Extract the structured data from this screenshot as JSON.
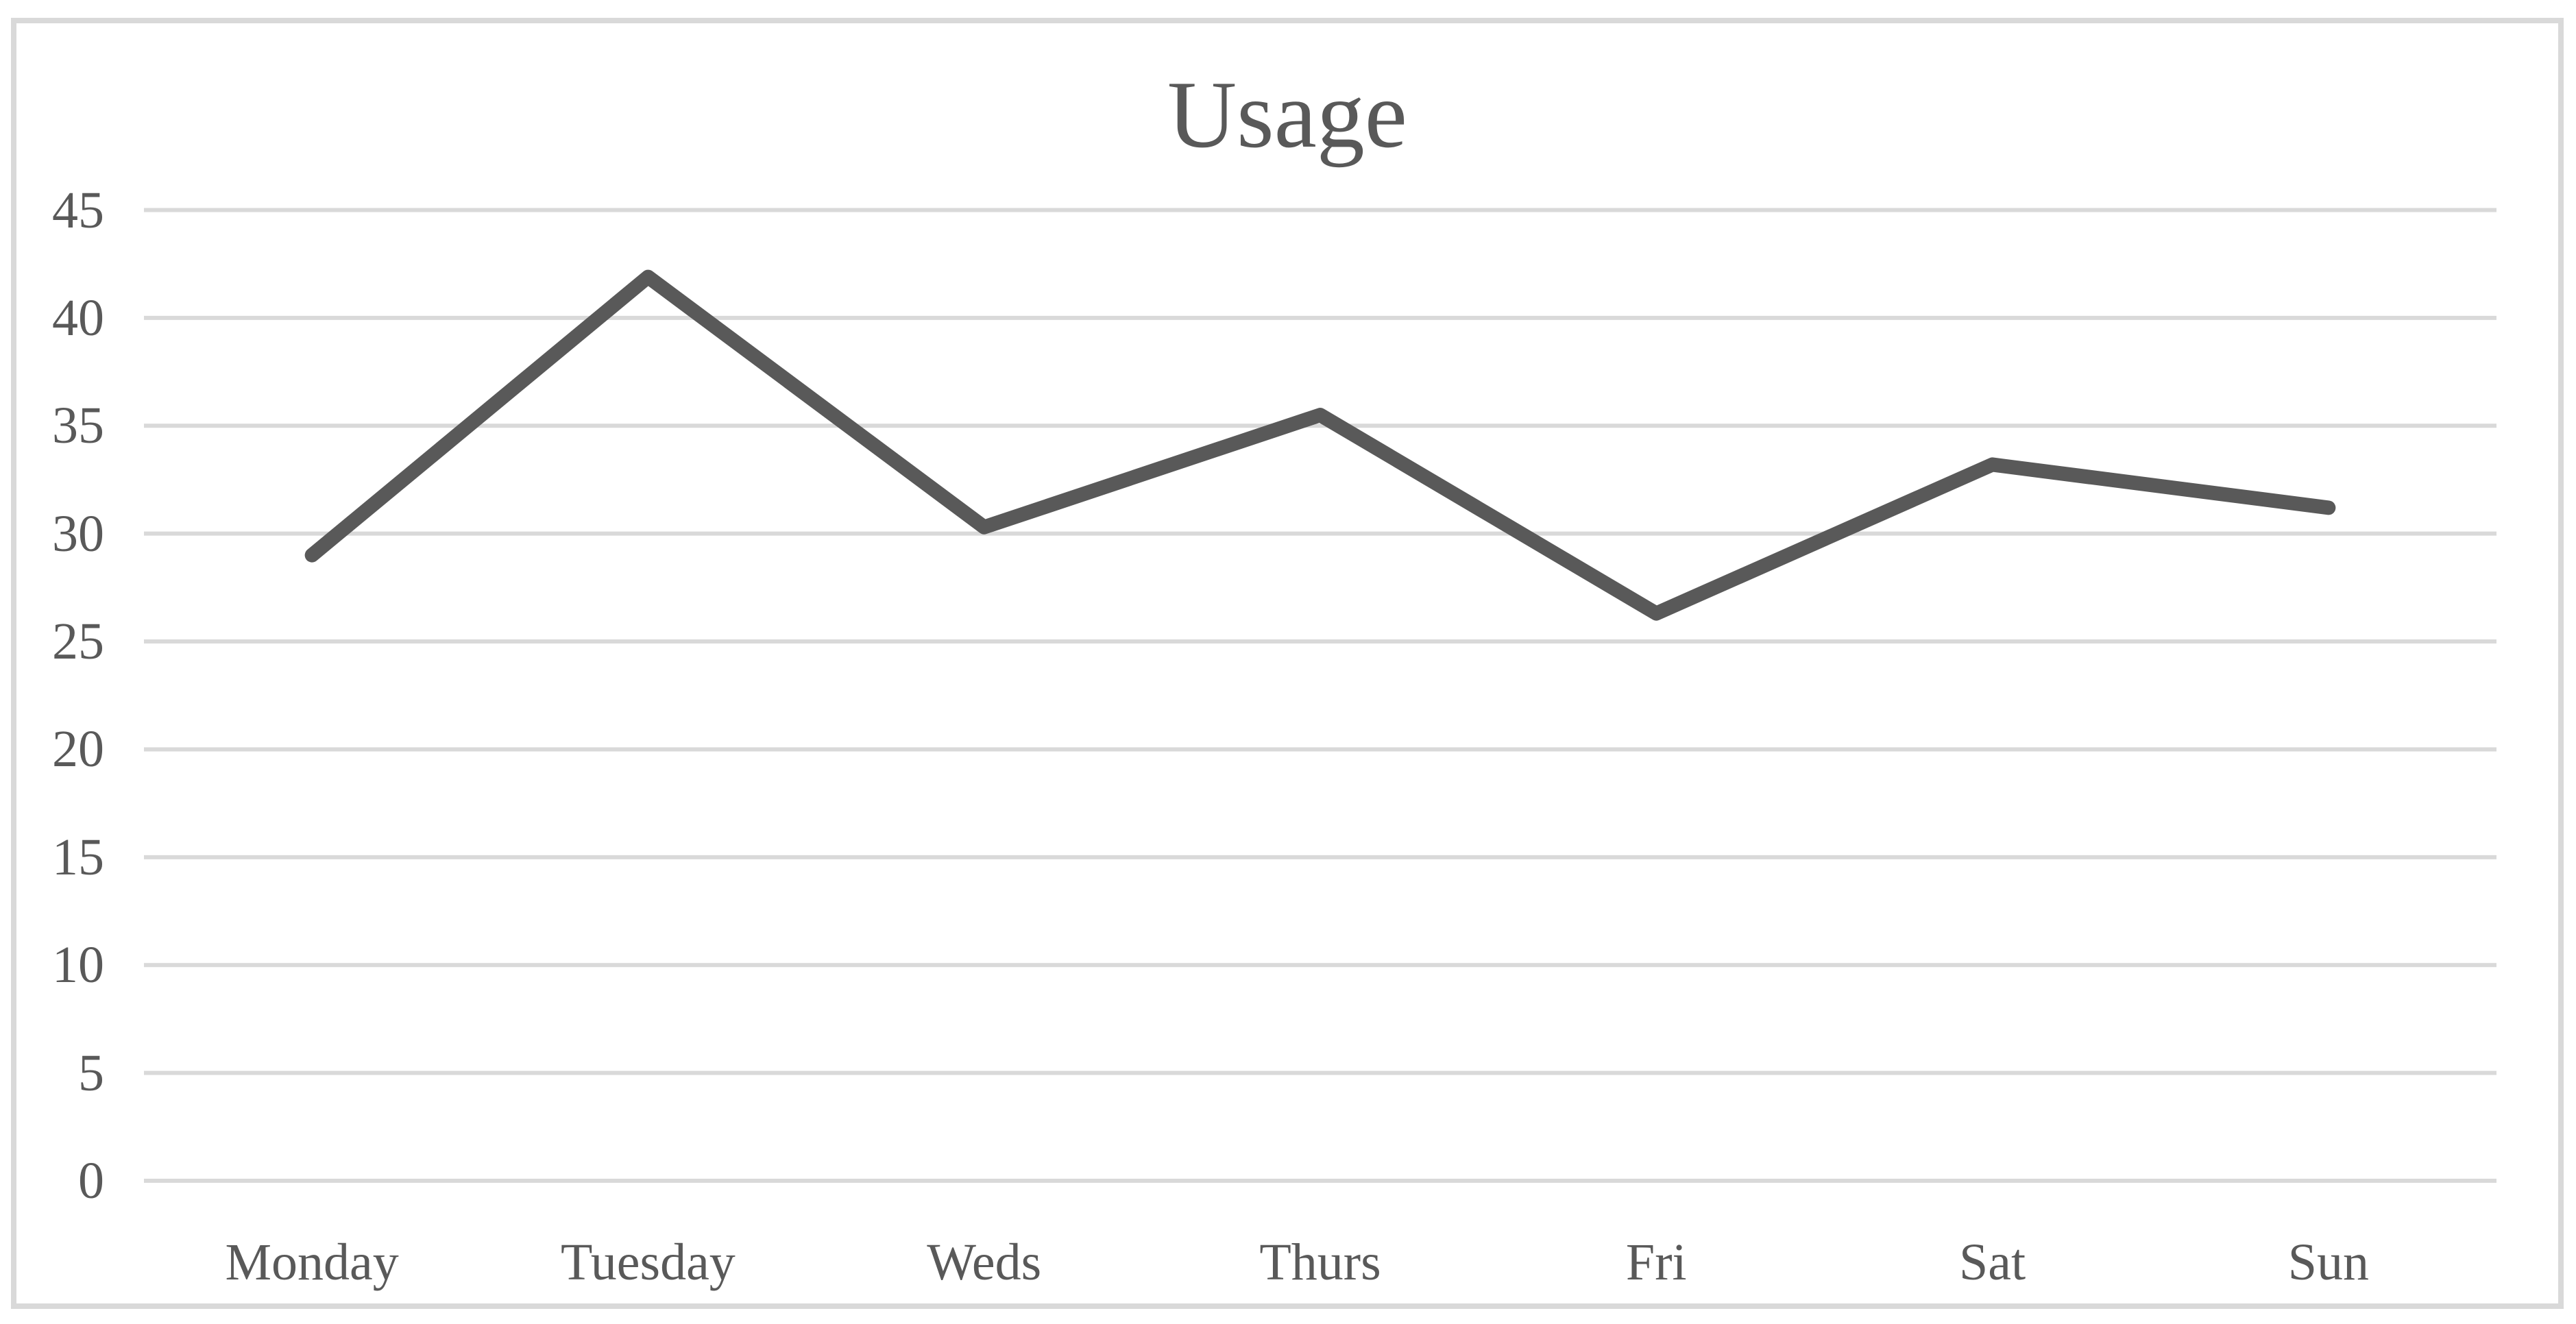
{
  "chart_data": {
    "type": "line",
    "title": "Usage",
    "categories": [
      "Monday",
      "Tuesday",
      "Weds",
      "Thurs",
      "Fri",
      "Sat",
      "Sun"
    ],
    "series": [
      {
        "name": "Usage",
        "values": [
          29,
          41.9,
          30.3,
          35.5,
          26.3,
          33.2,
          31.2
        ]
      }
    ],
    "xlabel": "",
    "ylabel": "",
    "ylim": [
      0,
      45
    ],
    "yticks": [
      0,
      5,
      10,
      15,
      20,
      25,
      30,
      35,
      40,
      45
    ],
    "grid": "horizontal",
    "legend": "none",
    "colors": {
      "line": "#595959",
      "gridline": "#D9D9D9",
      "tick_text": "#595959",
      "title_text": "#595959",
      "frame_border": "#D9D9D9",
      "background": "#FFFFFF"
    }
  }
}
